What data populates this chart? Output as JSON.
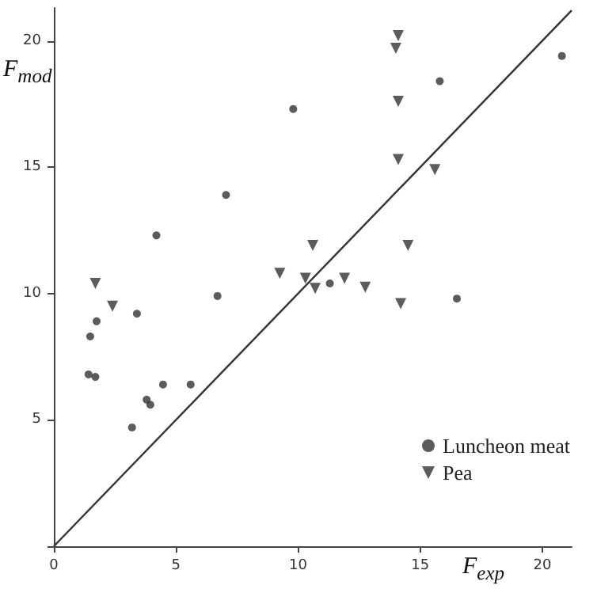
{
  "chart_data": {
    "type": "scatter",
    "xlabel": "F$_{exp}$",
    "ylabel": "F$_{mod}$",
    "xlim": [
      0,
      21.2
    ],
    "ylim": [
      0,
      21.3
    ],
    "xticks": [
      0,
      5,
      10,
      15,
      20
    ],
    "yticks": [
      {
        "value": 0,
        "label": null
      },
      5,
      10,
      15,
      20
    ],
    "grid": false,
    "legend": "bottom right",
    "series": [
      {
        "name": "Luncheon meat",
        "color": "#333333",
        "marker": "circle",
        "x": [
          1.49,
          1.75,
          1.42,
          1.7,
          3.2,
          3.4,
          3.8,
          3.95,
          4.47,
          5.6,
          6.7,
          4.2,
          7.05,
          9.8,
          15.8,
          20.8,
          16.5,
          11.3
        ],
        "values": [
          8.3,
          8.9,
          6.8,
          6.7,
          4.7,
          9.2,
          5.8,
          5.6,
          6.4,
          6.4,
          9.9,
          12.3,
          13.9,
          17.3,
          18.4,
          19.4,
          9.8,
          10.4
        ]
      },
      {
        "name": "Pea",
        "color": "#333333",
        "marker": "triangle",
        "x": [
          1.7,
          2.4,
          9.25,
          14.1,
          14.0,
          14.1,
          14.1,
          15.6,
          10.6,
          14.5,
          10.3,
          10.7,
          11.9,
          12.75,
          14.2
        ],
        "values": [
          10.4,
          9.5,
          10.8,
          20.2,
          19.7,
          17.6,
          15.3,
          14.9,
          11.9,
          11.9,
          10.6,
          10.2,
          10.6,
          10.25,
          9.6
        ]
      },
      {
        "type": "line",
        "color": "#333333",
        "line_style": "solid",
        "marker": "none",
        "x": [
          0,
          21.2
        ],
        "values": [
          0,
          21.2
        ]
      }
    ]
  }
}
